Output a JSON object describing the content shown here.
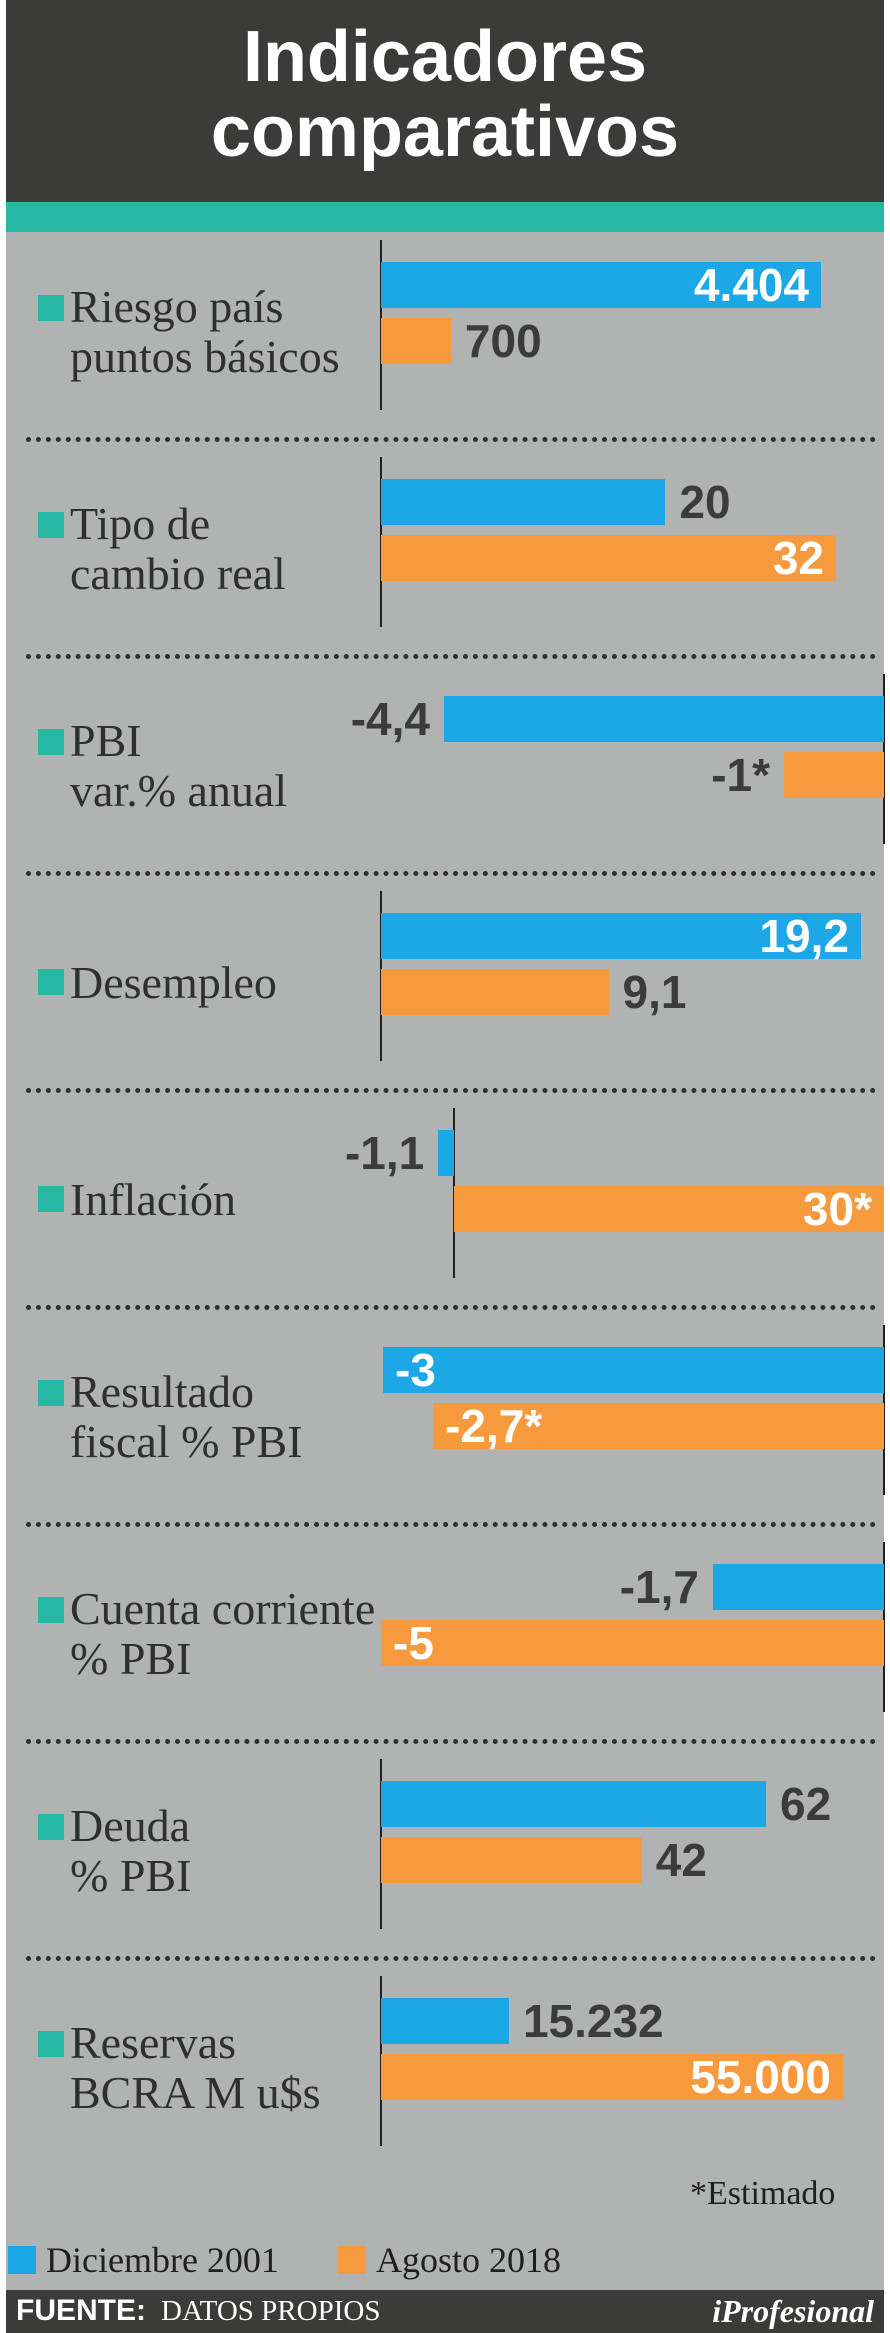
{
  "title": {
    "line1": "Indicadores",
    "line2": "comparativos"
  },
  "colors": {
    "series_a": "#1ca8e7",
    "series_b": "#f79a3d",
    "accent": "#27b8a4"
  },
  "chart_data": {
    "type": "bar",
    "orientation": "horizontal",
    "series": [
      {
        "name": "Diciembre 2001",
        "color": "#1ca8e7"
      },
      {
        "name": "Agosto 2018",
        "color": "#f79a3d"
      }
    ],
    "panels": [
      {
        "label": [
          "Riesgo país",
          "puntos básicos"
        ],
        "values": [
          4404,
          700
        ],
        "labels": [
          "4.404",
          "700"
        ]
      },
      {
        "label": [
          "Tipo de",
          "cambio real"
        ],
        "values": [
          20,
          32
        ],
        "labels": [
          "20",
          "32"
        ]
      },
      {
        "label": [
          "PBI",
          "var.% anual"
        ],
        "values": [
          -4.4,
          -1
        ],
        "labels": [
          "-4,4",
          "-1*"
        ]
      },
      {
        "label": [
          "Desempleo"
        ],
        "values": [
          19.2,
          9.1
        ],
        "labels": [
          "19,2",
          "9,1"
        ]
      },
      {
        "label": [
          "Inflación"
        ],
        "values": [
          -1.1,
          30
        ],
        "labels": [
          "-1,1",
          "30*"
        ]
      },
      {
        "label": [
          "Resultado",
          "fiscal % PBI"
        ],
        "values": [
          -3,
          -2.7
        ],
        "labels": [
          "-3",
          "-2,7*"
        ]
      },
      {
        "label": [
          "Cuenta corriente",
          "% PBI"
        ],
        "values": [
          -1.7,
          -5
        ],
        "labels": [
          "-1,7",
          "-5"
        ]
      },
      {
        "label": [
          "Deuda",
          "% PBI"
        ],
        "values": [
          62,
          42
        ],
        "labels": [
          "62",
          "42"
        ]
      },
      {
        "label": [
          "Reservas",
          "BCRA M u$s"
        ],
        "values": [
          15232,
          55000
        ],
        "labels": [
          "15.232",
          "55.000"
        ]
      }
    ]
  },
  "note": "*Estimado",
  "legend": {
    "series_a": "Diciembre 2001",
    "series_b": "Agosto 2018"
  },
  "footer": {
    "source_label": "FUENTE:",
    "source_value": "DATOS PROPIOS",
    "brand": "iProfesional"
  }
}
